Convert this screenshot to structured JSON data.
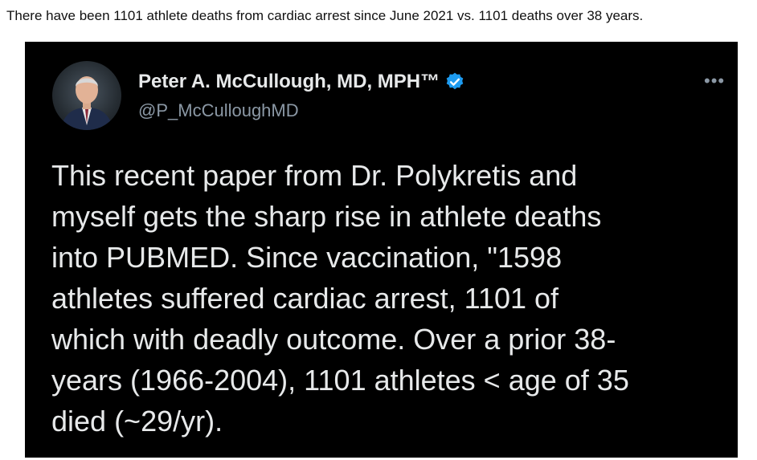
{
  "caption": "There have been 1101 athlete deaths from cardiac arrest since June 2021 vs. 1101 deaths over 38 years.",
  "tweet": {
    "author_name": "Peter A. McCullough, MD, MPH™",
    "handle": "@P_McCulloughMD",
    "more_label": "•••",
    "verified_icon": "verified-badge-icon",
    "body_lines": [
      "This recent paper from Dr. Polykretis and",
      "myself gets the sharp rise in athlete deaths",
      "into PUBMED. Since vaccination, \"1598",
      "athletes suffered cardiac arrest, 1101 of",
      "which with deadly outcome. Over a prior 38-",
      "years (1966-2004), 1101 athletes < age of 35",
      "died (~29/yr)."
    ]
  },
  "colors": {
    "tweet_background": "#000000",
    "primary_text": "#e7e9ea",
    "secondary_text": "#8b98a5",
    "verified_blue": "#1d9bf0"
  }
}
